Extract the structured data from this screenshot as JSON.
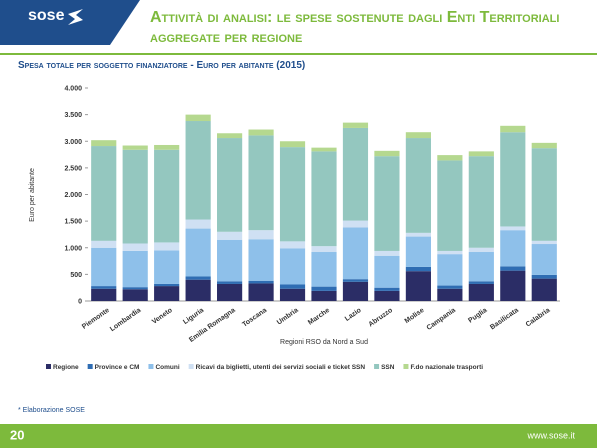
{
  "header": {
    "logo": "sose",
    "title": "Attività di analisi: le spese sostenute dagli Enti Territoriali aggregate per regione"
  },
  "chart_data": {
    "type": "stacked_bar",
    "title": "Spesa totale per soggetto finanziatore - Euro per abitante (2015)",
    "x_label": "Regioni RSO da Nord a Sud",
    "y_label": "Euro per abitante",
    "categories": [
      "Piemonte",
      "Lombardia",
      "Veneto",
      "Liguria",
      "Emilia Romagna",
      "Toscana",
      "Umbria",
      "Marche",
      "Lazio",
      "Abruzzo",
      "Molise",
      "Campania",
      "Puglia",
      "Basilicata",
      "Calabria"
    ],
    "series": [
      {
        "name": "Regione",
        "color": "#2b2d66",
        "values": [
          230,
          220,
          280,
          400,
          320,
          330,
          230,
          190,
          360,
          190,
          560,
          230,
          320,
          570,
          420
        ]
      },
      {
        "name": "Province e CM",
        "color": "#2f6db3",
        "values": [
          50,
          40,
          40,
          60,
          50,
          50,
          80,
          80,
          50,
          60,
          80,
          60,
          50,
          80,
          70
        ]
      },
      {
        "name": "Comuni",
        "color": "#8ec0ea",
        "values": [
          720,
          680,
          630,
          900,
          780,
          780,
          680,
          650,
          970,
          600,
          570,
          590,
          550,
          680,
          580
        ]
      },
      {
        "name": "Ricavi da biglietti, utenti dei servizi sociali e ticket SSN",
        "color": "#cfe0f3",
        "values": [
          130,
          140,
          150,
          170,
          150,
          170,
          130,
          110,
          130,
          90,
          70,
          60,
          80,
          70,
          60
        ]
      },
      {
        "name": "SSN",
        "color": "#94c7bf",
        "values": [
          1780,
          1760,
          1740,
          1850,
          1760,
          1780,
          1770,
          1780,
          1740,
          1780,
          1780,
          1700,
          1720,
          1770,
          1740
        ]
      },
      {
        "name": "F.do nazionale trasporti",
        "color": "#b5d88f",
        "values": [
          110,
          80,
          90,
          120,
          90,
          110,
          110,
          70,
          100,
          100,
          110,
          100,
          90,
          120,
          100
        ]
      }
    ],
    "ylim": [
      0,
      4000
    ],
    "yticks": [
      0,
      500,
      {
        "value": 1000,
        "label": "1.000"
      },
      {
        "value": 1500,
        "label": "1.500"
      },
      {
        "value": 2000,
        "label": "2.000"
      },
      {
        "value": 2500,
        "label": "2.500"
      },
      {
        "value": 3000,
        "label": "3.000"
      },
      {
        "value": 3500,
        "label": "3.500"
      },
      {
        "value": 4000,
        "label": "4.000"
      }
    ],
    "grid": false
  },
  "footnote": "* Elaborazione SOSE",
  "page_number": "20",
  "website": "www.sose.it"
}
